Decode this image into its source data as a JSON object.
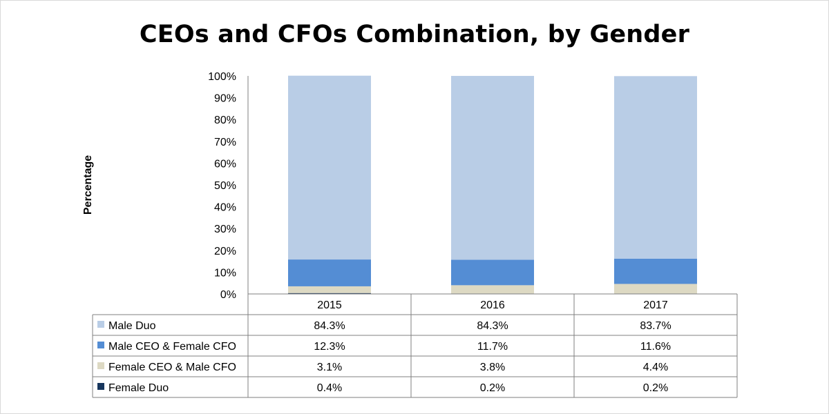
{
  "chart_data": {
    "type": "bar",
    "stacked": true,
    "title": "CEOs and CFOs Combination, by Gender",
    "ylabel": "Percentage",
    "xlabel": "",
    "ylim": [
      0,
      100
    ],
    "y_ticks": [
      "0%",
      "10%",
      "20%",
      "30%",
      "40%",
      "50%",
      "60%",
      "70%",
      "80%",
      "90%",
      "100%"
    ],
    "categories": [
      "2015",
      "2016",
      "2017"
    ],
    "series": [
      {
        "name": "Male Duo",
        "color": "#b9cde6",
        "values": [
          84.3,
          84.3,
          83.7
        ],
        "labels": [
          "84.3%",
          "84.3%",
          "83.7%"
        ]
      },
      {
        "name": "Male CEO & Female CFO",
        "color": "#548dd4",
        "values": [
          12.3,
          11.7,
          11.6
        ],
        "labels": [
          "12.3%",
          "11.7%",
          "11.6%"
        ]
      },
      {
        "name": "Female CEO & Male CFO",
        "color": "#ddd9c3",
        "values": [
          3.1,
          3.8,
          4.4
        ],
        "labels": [
          "3.1%",
          "3.8%",
          "4.4%"
        ]
      },
      {
        "name": "Female Duo",
        "color": "#17365d",
        "values": [
          0.4,
          0.2,
          0.2
        ],
        "labels": [
          "0.4%",
          "0.2%",
          "0.2%"
        ]
      }
    ],
    "legend": "data-table",
    "grid": false
  }
}
